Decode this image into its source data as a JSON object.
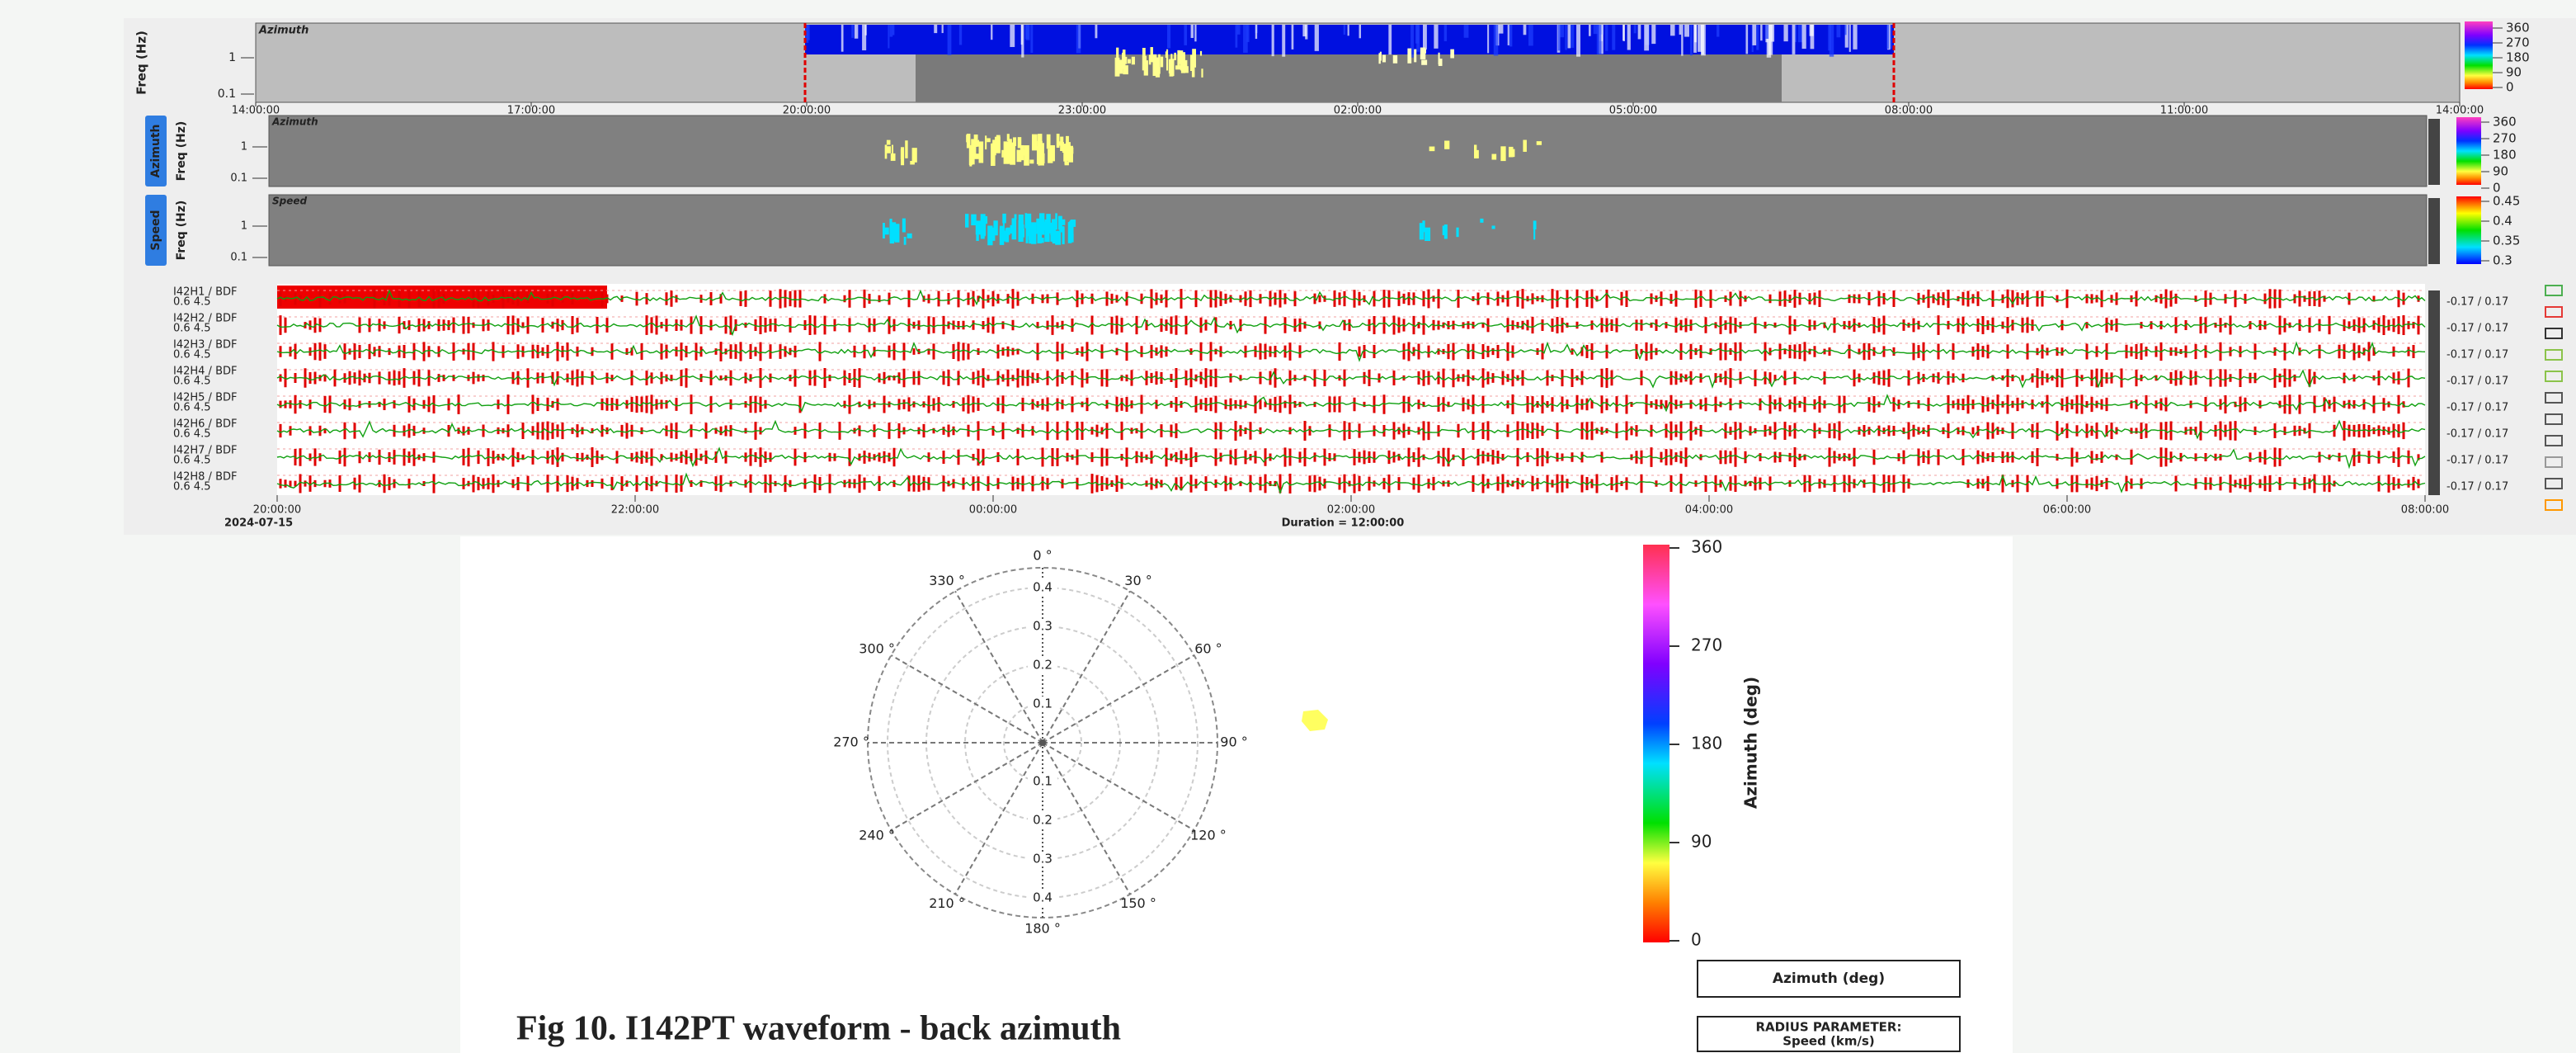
{
  "panels": {
    "spectrogram": {
      "ylabel": "Freq (Hz)",
      "title": "Azimuth",
      "yticks": [
        "1",
        "0.1"
      ],
      "time_ticks": [
        "14:00:00",
        "17:00:00",
        "20:00:00",
        "23:00:00",
        "02:00:00",
        "05:00:00",
        "08:00:00",
        "11:00:00",
        "14:00:00"
      ],
      "colorbar": [
        "360",
        "270",
        "180",
        "90",
        "0"
      ]
    },
    "azimuth": {
      "tab": "Azimuth",
      "ylabel": "Freq (Hz)",
      "title": "Azimuth",
      "yticks": [
        "1",
        "0.1"
      ],
      "colorbar": [
        "360",
        "270",
        "180",
        "90",
        "0"
      ]
    },
    "speed": {
      "tab": "Speed",
      "ylabel": "Freq (Hz)",
      "title": "Speed",
      "yticks": [
        "1",
        "0.1"
      ],
      "colorbar": [
        "0.45",
        "0.4",
        "0.35",
        "0.3"
      ]
    }
  },
  "channels": [
    {
      "name": "I42H1 / BDF",
      "filter": "0.6 4.5",
      "scale": "-0.17 / 0.17"
    },
    {
      "name": "I42H2 / BDF",
      "filter": "0.6 4.5",
      "scale": "-0.17 / 0.17"
    },
    {
      "name": "I42H3 / BDF",
      "filter": "0.6 4.5",
      "scale": "-0.17 / 0.17"
    },
    {
      "name": "I42H4 / BDF",
      "filter": "0.6 4.5",
      "scale": "-0.17 / 0.17"
    },
    {
      "name": "I42H5 / BDF",
      "filter": "0.6 4.5",
      "scale": "-0.17 / 0.17"
    },
    {
      "name": "I42H6 / BDF",
      "filter": "0.6 4.5",
      "scale": "-0.17 / 0.17"
    },
    {
      "name": "I42H7 / BDF",
      "filter": "0.6 4.5",
      "scale": "-0.17 / 0.17"
    },
    {
      "name": "I42H8 / BDF",
      "filter": "0.6 4.5",
      "scale": "-0.17 / 0.17"
    }
  ],
  "waveform_axis": {
    "ticks": [
      "20:00:00",
      "22:00:00",
      "00:00:00",
      "02:00:00",
      "04:00:00",
      "06:00:00",
      "08:00:00"
    ],
    "date": "2024-07-15",
    "duration": "Duration = 12:00:00"
  },
  "polar": {
    "angles": [
      "0 °",
      "30 °",
      "60 °",
      "90 °",
      "120 °",
      "150 °",
      "180 °",
      "210 °",
      "240 °",
      "270 °",
      "300 °",
      "330 °"
    ],
    "radii": [
      "0.1",
      "0.2",
      "0.3",
      "0.4"
    ],
    "colorbar": {
      "ticks": [
        "360",
        "270",
        "180",
        "90",
        "0"
      ],
      "label": "Azimuth (deg)"
    }
  },
  "legend_boxes": {
    "color": "Azimuth (deg)",
    "radius": [
      "RADIUS PARAMETER:",
      "Speed (km/s)"
    ]
  },
  "caption": "Fig 10.  I142PT waveform - back azimuth"
}
